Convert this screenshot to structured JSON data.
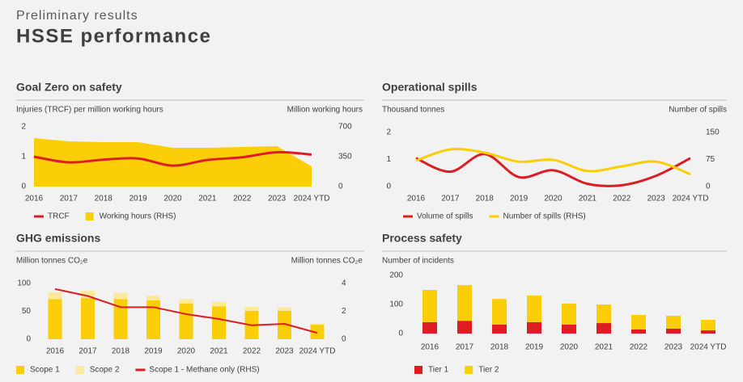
{
  "header": {
    "kicker": "Preliminary results",
    "title": "HSSE performance"
  },
  "chart_data": [
    {
      "type": "combo",
      "title": "Goal Zero on safety",
      "ylabel": "Injuries (TRCF) per million working hours",
      "y2label": "Million working hours",
      "categories": [
        "2016",
        "2017",
        "2018",
        "2019",
        "2020",
        "2021",
        "2022",
        "2023",
        "2024 YTD"
      ],
      "ylim": [
        0,
        2
      ],
      "yticks": [
        0,
        1,
        2
      ],
      "y2lim": [
        0,
        700
      ],
      "y2ticks": [
        0,
        350,
        700
      ],
      "series": [
        {
          "name": "TRCF",
          "type": "line",
          "smooth": true,
          "color": "#dd1d21",
          "values": [
            1.0,
            0.81,
            0.9,
            0.94,
            0.7,
            0.89,
            0.98,
            1.15,
            1.07
          ]
        },
        {
          "name": "Working hours (RHS)",
          "type": "area",
          "axis": "y2",
          "color": "#fbce07",
          "values": [
            568,
            530,
            520,
            520,
            454,
            454,
            463,
            473,
            236
          ]
        }
      ]
    },
    {
      "type": "line",
      "title": "Operational spills",
      "ylabel": "Thousand tonnes",
      "y2label": "Number of spills",
      "categories": [
        "2016",
        "2017",
        "2018",
        "2019",
        "2020",
        "2021",
        "2022",
        "2023",
        "2024 YTD"
      ],
      "ylim": [
        0,
        2
      ],
      "yticks": [
        0,
        1,
        2
      ],
      "y2lim": [
        0,
        150
      ],
      "y2ticks": [
        0,
        75,
        150
      ],
      "series": [
        {
          "name": "Volume of spills",
          "type": "line",
          "smooth": true,
          "color": "#dd1d21",
          "values": [
            1.05,
            0.55,
            1.2,
            0.35,
            0.6,
            0.1,
            0.05,
            0.4,
            1.05
          ]
        },
        {
          "name": "Number of spills (RHS)",
          "type": "line",
          "smooth": true,
          "axis": "y2",
          "color": "#fbce07",
          "values": [
            72,
            103,
            94,
            69,
            74,
            43,
            56,
            69,
            34
          ]
        }
      ]
    },
    {
      "type": "combo",
      "title": "GHG emissions",
      "stacked": true,
      "ylabel": "Million tonnes CO₂e",
      "y2label": "Million tonnes CO₂e",
      "categories": [
        "2016",
        "2017",
        "2018",
        "2019",
        "2020",
        "2021",
        "2022",
        "2023",
        "2024 YTD"
      ],
      "ylim": [
        0,
        100
      ],
      "yticks": [
        0,
        50,
        100
      ],
      "y2lim": [
        0,
        4
      ],
      "y2ticks": [
        0,
        2,
        4
      ],
      "series": [
        {
          "name": "Scope 1",
          "type": "bar",
          "color": "#fbce07",
          "values": [
            72,
            74,
            72,
            70,
            64,
            59,
            51,
            51,
            26
          ]
        },
        {
          "name": "Scope 2",
          "type": "bar",
          "color": "#fde99a",
          "values": [
            12,
            13,
            11,
            8,
            8,
            8,
            7,
            6,
            2
          ]
        },
        {
          "name": "Scope 1 - Methane only (RHS)",
          "type": "line",
          "axis": "y2",
          "color": "#dd1d21",
          "values": [
            3.6,
            3.1,
            2.3,
            2.3,
            1.8,
            1.45,
            1.0,
            1.1,
            0.45
          ]
        }
      ]
    },
    {
      "type": "bar",
      "title": "Process safety",
      "stacked": true,
      "ylabel": "Number of incidents",
      "categories": [
        "2016",
        "2017",
        "2018",
        "2019",
        "2020",
        "2021",
        "2022",
        "2023",
        "2024 YTD"
      ],
      "ylim": [
        0,
        200
      ],
      "yticks": [
        0,
        100,
        200
      ],
      "series": [
        {
          "name": "Tier 1",
          "type": "bar",
          "color": "#dd1d21",
          "values": [
            39,
            44,
            31,
            39,
            31,
            36,
            14,
            17,
            11
          ]
        },
        {
          "name": "Tier 2",
          "type": "bar",
          "color": "#fbce07",
          "values": [
            111,
            123,
            88,
            92,
            72,
            64,
            50,
            44,
            36
          ]
        }
      ]
    }
  ]
}
